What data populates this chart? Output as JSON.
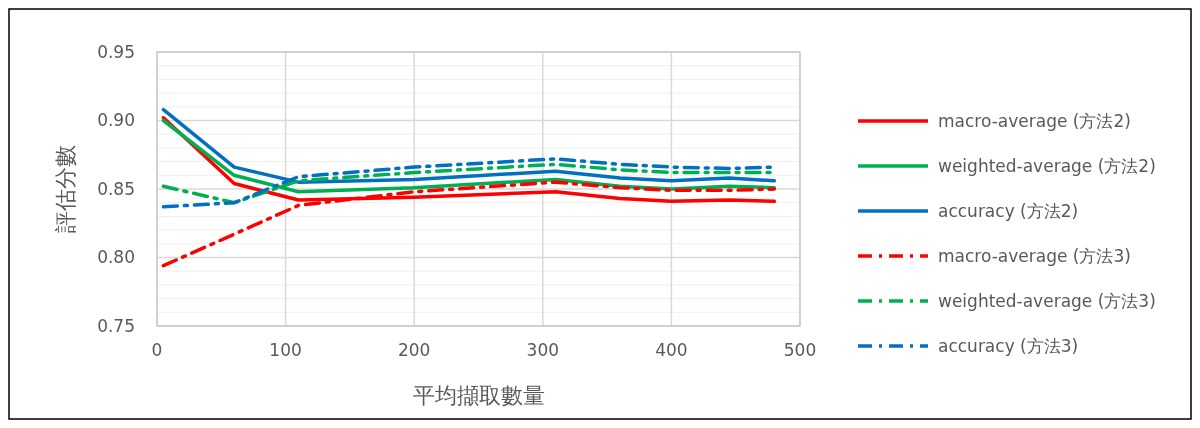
{
  "chart_data": {
    "type": "line",
    "xlabel": "平均擷取數量",
    "ylabel": "評估分數",
    "xlim": [
      0,
      500
    ],
    "xticks": [
      0,
      100,
      200,
      300,
      400,
      500
    ],
    "ylim": [
      0.75,
      0.95
    ],
    "yticks": [
      0.75,
      {
        "value": 0.76,
        "label": null
      },
      {
        "value": 0.77,
        "label": null
      },
      {
        "value": 0.78,
        "label": null
      },
      {
        "value": 0.79,
        "label": null
      },
      {
        "value": 0.8,
        "label": "0.80"
      },
      {
        "value": 0.81,
        "label": null
      },
      {
        "value": 0.82,
        "label": null
      },
      {
        "value": 0.83,
        "label": null
      },
      {
        "value": 0.84,
        "label": null
      },
      0.85,
      {
        "value": 0.86,
        "label": null
      },
      {
        "value": 0.87,
        "label": null
      },
      {
        "value": 0.88,
        "label": null
      },
      {
        "value": 0.89,
        "label": null
      },
      {
        "value": 0.9,
        "label": "0.90"
      },
      {
        "value": 0.91,
        "label": null
      },
      {
        "value": 0.92,
        "label": null
      },
      {
        "value": 0.93,
        "label": null
      },
      {
        "value": 0.94,
        "label": null
      },
      0.95
    ],
    "grid": true,
    "legend": "right",
    "marker": "none",
    "x": [
      5,
      60,
      110,
      200,
      310,
      360,
      400,
      445,
      480
    ],
    "series": [
      {
        "name": "macro-average (方法2)",
        "color": "#ff0000",
        "line_style": "solid",
        "values": [
          0.902,
          0.854,
          0.842,
          0.844,
          0.848,
          0.843,
          0.841,
          0.842,
          0.841
        ]
      },
      {
        "name": "weighted-average (方法2)",
        "color": "#00b050",
        "line_style": "solid",
        "values": [
          0.9,
          0.86,
          0.848,
          0.851,
          0.857,
          0.852,
          0.85,
          0.852,
          0.851
        ]
      },
      {
        "name": "accuracy (方法2)",
        "color": "#0070c0",
        "line_style": "solid",
        "values": [
          0.908,
          0.866,
          0.855,
          0.857,
          0.863,
          0.858,
          0.856,
          0.858,
          0.856
        ]
      },
      {
        "name": "macro-average (方法3)",
        "color": "#ff0000",
        "line_style": "dashed",
        "values": [
          0.794,
          0.817,
          0.838,
          0.848,
          0.855,
          0.851,
          0.849,
          0.849,
          0.85
        ]
      },
      {
        "name": "weighted-average (方法3)",
        "color": "#00b050",
        "line_style": "dashed",
        "values": [
          0.852,
          0.84,
          0.856,
          0.862,
          0.868,
          0.864,
          0.862,
          0.862,
          0.862
        ]
      },
      {
        "name": "accuracy (方法3)",
        "color": "#0070c0",
        "line_style": "dashed",
        "values": [
          0.837,
          0.84,
          0.859,
          0.866,
          0.872,
          0.868,
          0.866,
          0.865,
          0.866
        ]
      }
    ]
  }
}
